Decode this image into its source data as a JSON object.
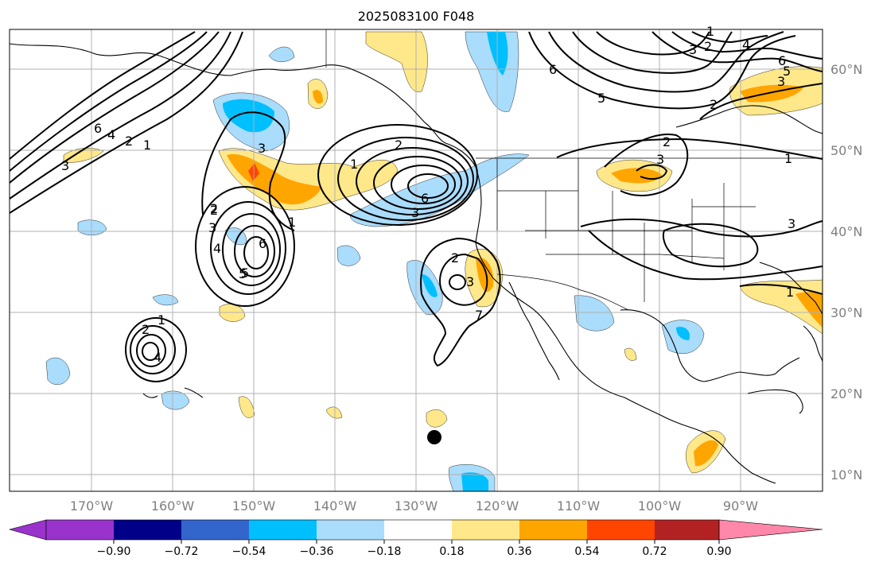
{
  "map": {
    "title": "2025083100 F048",
    "lon_labels": [
      "170°W",
      "160°W",
      "150°W",
      "140°W",
      "130°W",
      "120°W",
      "110°W",
      "100°W",
      "90°W"
    ],
    "lat_labels": [
      "60°N",
      "50°N",
      "40°N",
      "30°N",
      "20°N",
      "10°N"
    ],
    "projection": "plate-carree",
    "extent": {
      "lon": [
        -180,
        -80
      ],
      "lat": [
        8,
        66
      ]
    }
  },
  "colorbar": {
    "tick_labels": [
      "−0.90",
      "−0.72",
      "−0.54",
      "−0.36",
      "−0.18",
      "0.18",
      "0.36",
      "0.54",
      "0.72",
      "0.90"
    ],
    "colors": [
      "#9933cc",
      "#000088",
      "#3366cc",
      "#00bfff",
      "#aadcfc",
      "#ffffff",
      "#ffe88a",
      "#ffa500",
      "#ff4500",
      "#b22222",
      "#ff88aa"
    ],
    "extend": "both"
  },
  "contour_labels": [
    {
      "text": "6"
    },
    {
      "text": "4"
    },
    {
      "text": "2"
    },
    {
      "text": "1"
    },
    {
      "text": "3"
    },
    {
      "text": "2"
    },
    {
      "text": "1"
    },
    {
      "text": "2"
    },
    {
      "text": "6"
    },
    {
      "text": "3"
    },
    {
      "text": "2"
    },
    {
      "text": "3"
    },
    {
      "text": "5"
    },
    {
      "text": "7"
    },
    {
      "text": "2"
    },
    {
      "text": "3"
    },
    {
      "text": "4"
    },
    {
      "text": "6"
    },
    {
      "text": "5"
    },
    {
      "text": "1"
    },
    {
      "text": "2"
    },
    {
      "text": "1"
    },
    {
      "text": "3"
    },
    {
      "text": "4"
    },
    {
      "text": "2"
    },
    {
      "text": "3"
    },
    {
      "text": "1"
    },
    {
      "text": "2"
    },
    {
      "text": "6"
    },
    {
      "text": "5"
    },
    {
      "text": "3"
    },
    {
      "text": "4"
    },
    {
      "text": "5"
    },
    {
      "text": "6"
    },
    {
      "text": "2"
    },
    {
      "text": "3"
    },
    {
      "text": "1"
    },
    {
      "text": "3"
    },
    {
      "text": "1"
    }
  ],
  "marker": {
    "type": "filled-circle",
    "color": "#000000"
  }
}
